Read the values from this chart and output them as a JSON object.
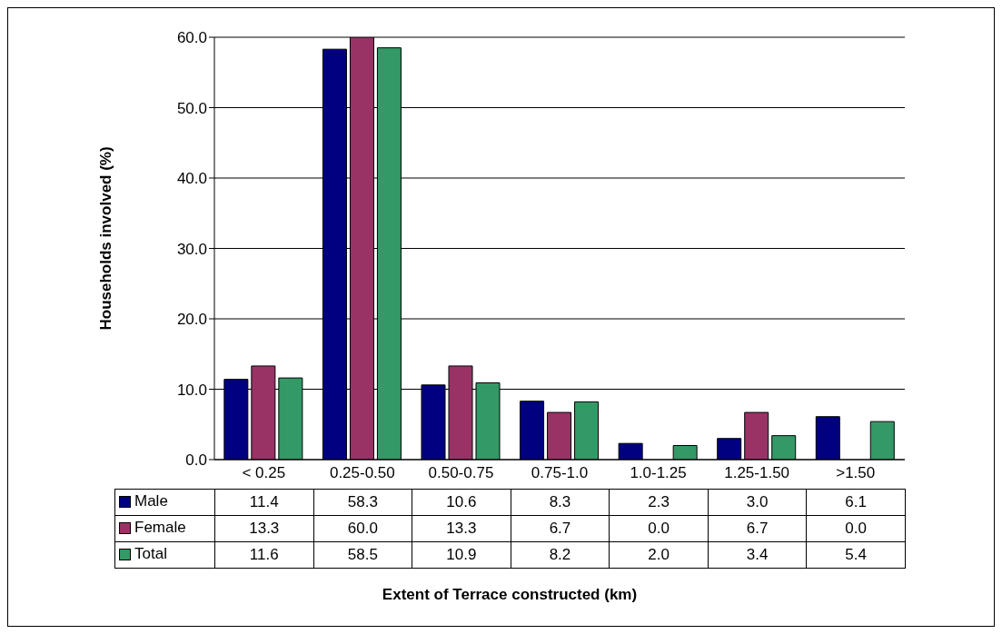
{
  "chart_data": {
    "type": "bar",
    "annotations": [
      "Extent of Terrace constructed (km)"
    ],
    "ylabel": "Households involved (%)",
    "categories": [
      "< 0.25",
      "0.25-0.50",
      "0.50-0.75",
      "0.75-1.0",
      "1.0-1.25",
      "1.25-1.50",
      ">1.50"
    ],
    "series": [
      {
        "name": "Male",
        "color": "#000080",
        "values": [
          11.4,
          58.3,
          10.6,
          8.3,
          2.3,
          3.0,
          6.1
        ],
        "value_labels": [
          "11.4",
          "58.3",
          "10.6",
          "8.3",
          "2.3",
          "3.0",
          "6.1"
        ]
      },
      {
        "name": "Female",
        "color": "#993366",
        "values": [
          13.3,
          60.0,
          13.3,
          6.7,
          0.0,
          6.7,
          0.0
        ],
        "value_labels": [
          "13.3",
          "60.0",
          "13.3",
          "6.7",
          "0.0",
          "6.7",
          "0.0"
        ]
      },
      {
        "name": "Total",
        "color": "#339966",
        "values": [
          11.6,
          58.5,
          10.9,
          8.2,
          2.0,
          3.4,
          5.4
        ],
        "value_labels": [
          "11.6",
          "58.5",
          "10.9",
          "8.2",
          "2.0",
          "3.4",
          "5.4"
        ]
      }
    ],
    "ylim": [
      0,
      60
    ],
    "yticks": [
      {
        "value": 0,
        "label": "0.0"
      },
      {
        "value": 10,
        "label": "10.0"
      },
      {
        "value": 20,
        "label": "20.0"
      },
      {
        "value": 30,
        "label": "30.0"
      },
      {
        "value": 40,
        "label": "40.0"
      },
      {
        "value": 50,
        "label": "50.0"
      },
      {
        "value": 60,
        "label": "60.0"
      }
    ],
    "grid": "y",
    "legend": "bottom left"
  }
}
